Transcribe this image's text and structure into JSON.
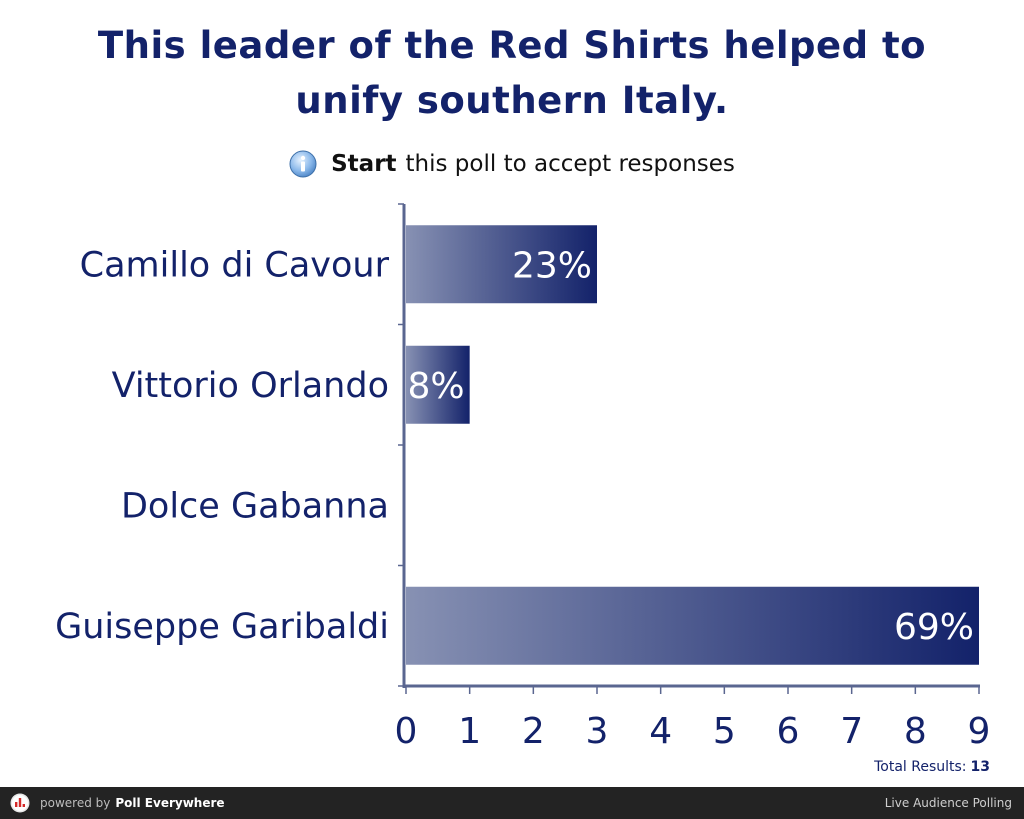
{
  "poll": {
    "title": "This leader of the Red Shirts helped to unify southern Italy.",
    "hint_bold": "Start",
    "hint_text": "this poll to accept responses",
    "total_label": "Total Results:",
    "total_value": "13"
  },
  "footer": {
    "powered_by": "powered by",
    "brand": "Poll Everywhere",
    "tagline": "Live Audience Polling"
  },
  "colors": {
    "bar_dark": "#13226a",
    "bar_light": "#8791b3",
    "text": "#13226a",
    "footer_bg": "#232323"
  },
  "chart_data": {
    "type": "bar",
    "orientation": "horizontal",
    "categories": [
      "Camillo di Cavour",
      "Vittorio Orlando",
      "Dolce Gabanna",
      "Guiseppe Garibaldi"
    ],
    "values": [
      3,
      1,
      0,
      9
    ],
    "data_labels": [
      "23%",
      "8%",
      "",
      "69%"
    ],
    "xlim": [
      0,
      9
    ],
    "x_ticks": [
      0,
      1,
      2,
      3,
      4,
      5,
      6,
      7,
      8,
      9
    ],
    "grid": false,
    "legend": "none"
  }
}
